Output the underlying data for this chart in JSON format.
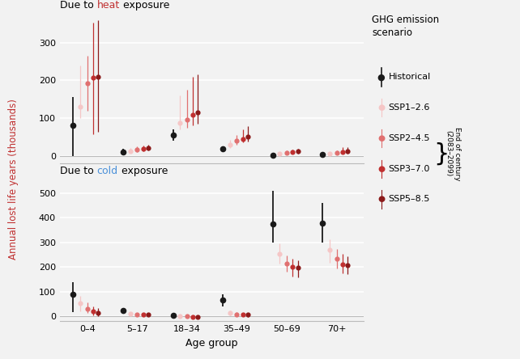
{
  "ylabel": "Annual lost life years (thousands)",
  "xlabel": "Age group",
  "age_groups": [
    "0–4",
    "5–17",
    "18–34",
    "35–49",
    "50–69",
    "70+"
  ],
  "legend_title": "GHG emission\nscenario",
  "legend_entries": [
    "Historical",
    "SSP1–2.6",
    "SSP2–4.5",
    "SSP3–7.0",
    "SSP5–8.5"
  ],
  "legend_note": "End of century\n(2083–2099)",
  "colors": {
    "historical": "#1a1a1a",
    "ssp1": "#f5c6c6",
    "ssp2": "#e07070",
    "ssp3": "#c03030",
    "ssp5": "#8b1a1a"
  },
  "heat_data": {
    "historical": {
      "centers": [
        80,
        10,
        55,
        18,
        2,
        3
      ],
      "lo": [
        0,
        2,
        40,
        13,
        -2,
        -1
      ],
      "hi": [
        155,
        18,
        70,
        24,
        4,
        8
      ]
    },
    "ssp1": {
      "centers": [
        130,
        13,
        87,
        30,
        5,
        5
      ],
      "lo": [
        100,
        9,
        70,
        20,
        2,
        2
      ],
      "hi": [
        240,
        20,
        160,
        42,
        10,
        10
      ]
    },
    "ssp2": {
      "centers": [
        193,
        16,
        96,
        40,
        8,
        8
      ],
      "lo": [
        120,
        11,
        75,
        30,
        4,
        4
      ],
      "hi": [
        265,
        25,
        175,
        55,
        14,
        15
      ]
    },
    "ssp3": {
      "centers": [
        208,
        18,
        108,
        45,
        10,
        11
      ],
      "lo": [
        58,
        13,
        80,
        35,
        5,
        5
      ],
      "hi": [
        352,
        28,
        210,
        70,
        17,
        22
      ]
    },
    "ssp5": {
      "centers": [
        210,
        20,
        115,
        50,
        12,
        13
      ],
      "lo": [
        63,
        14,
        85,
        37,
        6,
        6
      ],
      "hi": [
        358,
        30,
        215,
        78,
        18,
        23
      ]
    }
  },
  "cold_data": {
    "historical": {
      "centers": [
        88,
        25,
        3,
        65,
        375,
        378
      ],
      "lo": [
        18,
        15,
        -2,
        40,
        298,
        300
      ],
      "hi": [
        140,
        35,
        8,
        90,
        510,
        460
      ]
    },
    "ssp1": {
      "centers": [
        52,
        12,
        1,
        14,
        253,
        268
      ],
      "lo": [
        22,
        6,
        -2,
        4,
        213,
        218
      ],
      "hi": [
        82,
        16,
        4,
        24,
        295,
        312
      ]
    },
    "ssp2": {
      "centers": [
        30,
        8,
        0,
        9,
        215,
        232
      ],
      "lo": [
        14,
        3,
        -2,
        2,
        180,
        195
      ],
      "hi": [
        56,
        12,
        3,
        17,
        247,
        272
      ]
    },
    "ssp3": {
      "centers": [
        20,
        7,
        -1,
        7,
        200,
        212
      ],
      "lo": [
        5,
        2,
        -3,
        0,
        163,
        175
      ],
      "hi": [
        40,
        10,
        2,
        13,
        232,
        252
      ]
    },
    "ssp5": {
      "centers": [
        15,
        6,
        -2,
        6,
        196,
        207
      ],
      "lo": [
        2,
        1,
        -4,
        -1,
        158,
        170
      ],
      "hi": [
        35,
        9,
        1,
        12,
        226,
        242
      ]
    }
  },
  "heat_ylim": [
    -20,
    365
  ],
  "cold_ylim": [
    -20,
    540
  ],
  "heat_yticks": [
    0,
    100,
    200,
    300
  ],
  "cold_yticks": [
    0,
    100,
    200,
    300,
    400,
    500
  ],
  "background_color": "#f2f2f2",
  "grid_color": "#ffffff"
}
